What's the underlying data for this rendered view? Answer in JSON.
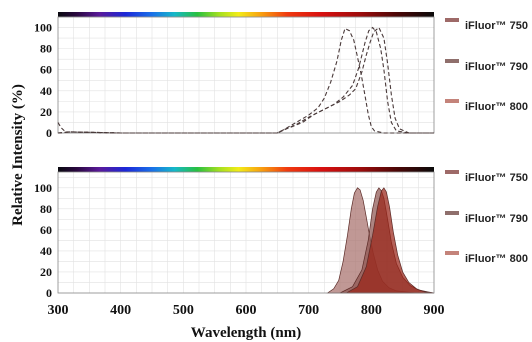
{
  "chart_data": [
    {
      "type": "line",
      "ylabel": "Relative Intensity (%)",
      "xlim": [
        300,
        900
      ],
      "ylim": [
        0,
        110
      ],
      "y_ticks": [
        0,
        20,
        40,
        60,
        80,
        100
      ],
      "grid": true,
      "legend_position": "right",
      "series": [
        {
          "name": "iFluor™ 750",
          "color": "#9e6a68",
          "x": [
            300,
            305,
            312,
            320,
            400,
            550,
            650,
            660,
            680,
            700,
            715,
            725,
            735,
            745,
            752,
            758,
            765,
            772,
            778,
            784,
            790,
            795,
            800,
            805,
            820,
            900
          ],
          "y": [
            10,
            5,
            1,
            1,
            0,
            0,
            0,
            3,
            10,
            17,
            24,
            33,
            48,
            68,
            88,
            99,
            97,
            88,
            72,
            55,
            35,
            18,
            6,
            2,
            0,
            0
          ]
        },
        {
          "name": "iFluor™ 790",
          "color": "#8f6f6c",
          "x": [
            300,
            320,
            400,
            550,
            650,
            660,
            680,
            700,
            720,
            740,
            755,
            770,
            780,
            790,
            796,
            802,
            808,
            815,
            820,
            826,
            832,
            840,
            860,
            900
          ],
          "y": [
            0,
            1,
            0,
            0,
            0,
            3,
            8,
            15,
            21,
            27,
            34,
            45,
            62,
            86,
            97,
            100,
            96,
            80,
            60,
            30,
            10,
            2,
            0,
            0
          ]
        },
        {
          "name": "iFluor™ 800",
          "color": "#c4837a",
          "x": [
            300,
            320,
            400,
            550,
            650,
            665,
            690,
            710,
            730,
            750,
            765,
            775,
            785,
            792,
            798,
            804,
            812,
            820,
            826,
            832,
            838,
            845,
            860,
            900
          ],
          "y": [
            0,
            1,
            0,
            0,
            0,
            4,
            10,
            18,
            24,
            30,
            36,
            42,
            58,
            74,
            86,
            96,
            100,
            90,
            66,
            36,
            14,
            4,
            0,
            0
          ]
        }
      ]
    },
    {
      "type": "area",
      "xlabel": "Wavelength (nm)",
      "xlim": [
        300,
        900
      ],
      "ylim": [
        0,
        115
      ],
      "x_ticks": [
        300,
        400,
        500,
        600,
        700,
        800,
        900
      ],
      "y_ticks": [
        0,
        20,
        40,
        60,
        80,
        100
      ],
      "grid": true,
      "legend_position": "right",
      "series": [
        {
          "name": "iFluor™ 750",
          "color": "#9e6a68",
          "x": [
            730,
            740,
            748,
            755,
            762,
            768,
            773,
            778,
            782,
            787,
            792,
            797,
            803,
            810,
            818,
            828,
            840,
            855,
            870
          ],
          "y": [
            0,
            4,
            12,
            30,
            55,
            80,
            95,
            100,
            98,
            88,
            72,
            55,
            38,
            22,
            11,
            5,
            2,
            1,
            0
          ]
        },
        {
          "name": "iFluor™ 790",
          "color": "#8f6f6c",
          "x": [
            750,
            770,
            785,
            795,
            802,
            808,
            812,
            816,
            820,
            826,
            832,
            840,
            850,
            862,
            875,
            890,
            900
          ],
          "y": [
            0,
            6,
            22,
            50,
            80,
            96,
            100,
            97,
            90,
            70,
            48,
            28,
            15,
            7,
            3,
            1,
            0
          ]
        },
        {
          "name": "iFluor™ 800",
          "color": "#c4837a",
          "x": [
            760,
            778,
            792,
            802,
            810,
            816,
            820,
            824,
            829,
            835,
            842,
            850,
            860,
            872,
            885,
            900
          ],
          "y": [
            0,
            6,
            25,
            55,
            82,
            97,
            100,
            96,
            82,
            58,
            36,
            20,
            10,
            4,
            1,
            0
          ]
        }
      ]
    }
  ]
}
